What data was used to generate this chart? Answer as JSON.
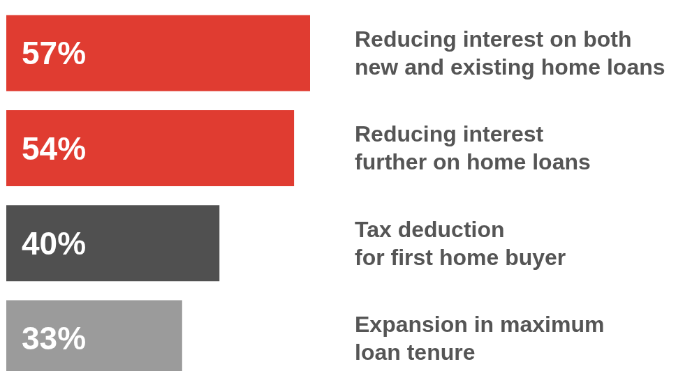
{
  "chart_data": {
    "type": "bar",
    "orientation": "horizontal",
    "categories": [
      "Reducing interest on both\nnew and existing home loans",
      "Reducing interest\nfurther on home loans",
      "Tax deduction\nfor first home buyer",
      "Expansion in maximum\nloan tenure"
    ],
    "values": [
      57,
      54,
      40,
      33
    ],
    "colors": [
      "#e03c31",
      "#e03c31",
      "#505050",
      "#9b9b9b"
    ],
    "value_labels": [
      "57%",
      "54%",
      "40%",
      "33%"
    ]
  }
}
